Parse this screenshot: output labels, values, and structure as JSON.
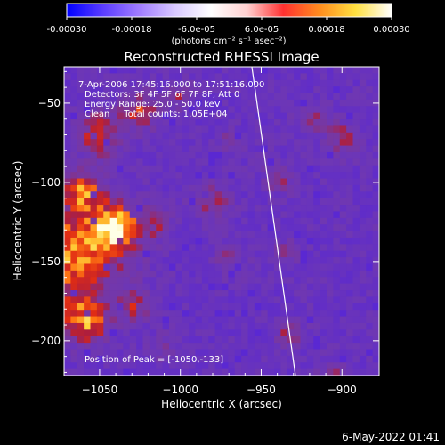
{
  "colors": {
    "colormap": [
      "#0000ff",
      "#5a3cff",
      "#a07cff",
      "#d8c8ff",
      "#ffffff",
      "#ffd0d0",
      "#ff3030",
      "#ff8c1e",
      "#ffe040",
      "#ffffff"
    ],
    "background": "#000000",
    "limb_line": "#ffffff"
  },
  "colorbar": {
    "ticks": [
      "-0.00030",
      "-0.00018",
      "-6.0e-05",
      "6.0e-05",
      "0.00018",
      "0.00030"
    ],
    "unit_label": "(photons cm⁻² s⁻¹ asec⁻²)"
  },
  "chart_data": {
    "type": "heatmap",
    "title": "Reconstructed RHESSI Image",
    "xlabel": "Heliocentric X (arcsec)",
    "ylabel": "Heliocentric Y (arcsec)",
    "xlim": [
      -1072,
      -877
    ],
    "ylim": [
      -222,
      -27
    ],
    "xticks": [
      -1050,
      -1000,
      -950,
      -900
    ],
    "yticks": [
      -50,
      -100,
      -150,
      -200
    ],
    "xtick_labels": [
      "−1050",
      "−1000",
      "−950",
      "−900"
    ],
    "ytick_labels": [
      "−50",
      "−100",
      "−150",
      "−200"
    ],
    "vmin": -0.0003,
    "vmax": 0.0003,
    "info_lines": [
      "7-Apr-2006 17:45:16.000 to 17:51:16.000",
      "Detectors: 3F 4F 5F 6F 7F 8F, Att 0",
      "Energy Range: 25.0 - 50.0 keV",
      "Clean     Total counts: 1.05E+04"
    ],
    "peak_label": "Position of Peak = [-1050,-133]",
    "peak_position": [
      -1050,
      -133
    ]
  },
  "footer": {
    "timestamp": "6-May-2022 01:41"
  }
}
